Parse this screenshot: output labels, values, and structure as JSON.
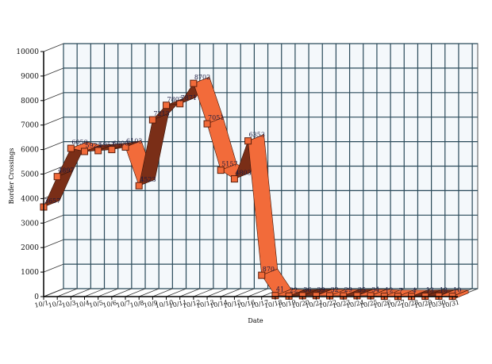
{
  "chart_data": {
    "type": "line",
    "style": "3d-ribbon",
    "title": "",
    "xlabel": "Date",
    "ylabel": "Border Crossings",
    "ylim": [
      0,
      10000
    ],
    "yticks": [
      0,
      1000,
      2000,
      3000,
      4000,
      5000,
      6000,
      7000,
      8000,
      9000,
      10000
    ],
    "grid": true,
    "legend": "none",
    "categories": [
      "10/1",
      "10/2",
      "10/3",
      "10/4",
      "10/5",
      "10/6",
      "10/7",
      "10/8",
      "10/9",
      "10/10",
      "10/11",
      "10/12",
      "10/13",
      "10/14",
      "10/15",
      "10/16",
      "10/17",
      "10/18",
      "10/19",
      "10/20",
      "10/21",
      "10/22",
      "10/23",
      "10/24",
      "10/25",
      "10/26",
      "10/27",
      "10/28",
      "10/29",
      "10/30",
      "10/31"
    ],
    "series": [
      {
        "name": "Border Crossings",
        "values": [
          3657,
          4897,
          6050,
          5923,
          5957,
          6000,
          6103,
          4523,
          7213,
          7807,
          7871,
          8702,
          7051,
          5157,
          4803,
          6353,
          870,
          41,
          22,
          36,
          39,
          32,
          29,
          35,
          34,
          12,
          7,
          4,
          13,
          18,
          10
        ]
      }
    ],
    "colors": {
      "ribbon_top": "#f26b3a",
      "ribbon_side": "#7a2e17",
      "marker_fill": "#f26b3a",
      "marker_stroke": "#5a1e0c",
      "grid": "#2a4a5a",
      "wall": "#f4f8fb",
      "label": "#1a1a40"
    }
  }
}
